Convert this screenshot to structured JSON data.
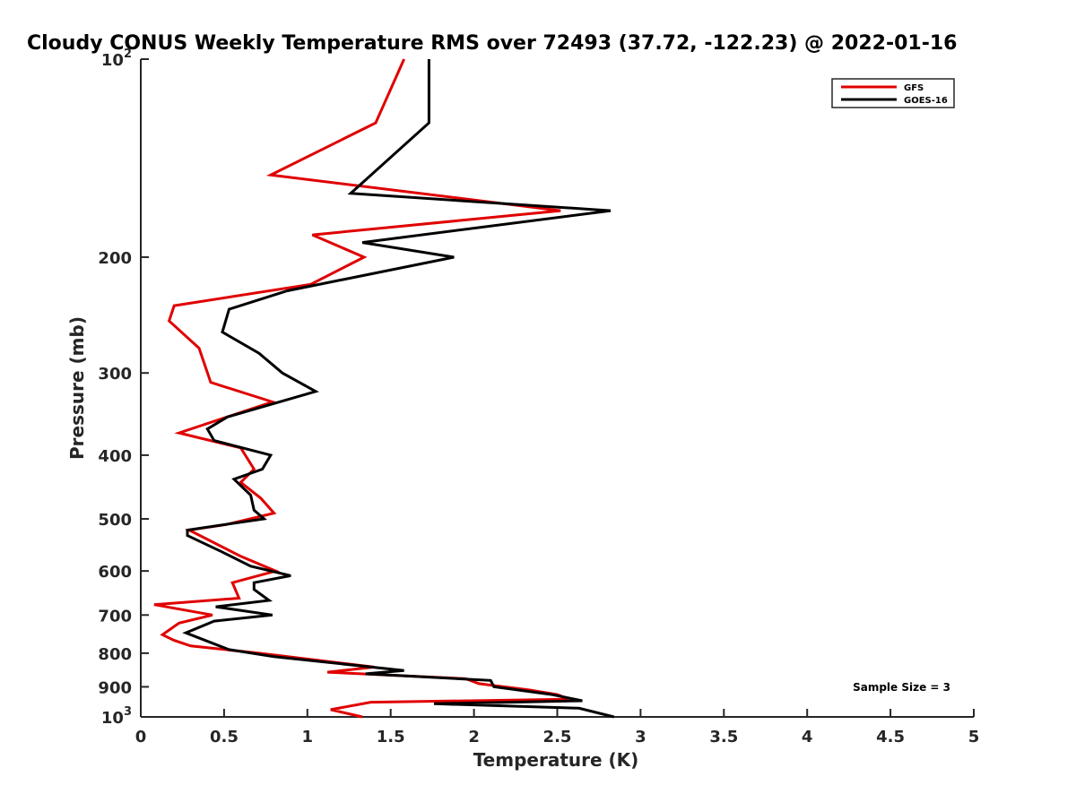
{
  "chart_data": {
    "type": "line",
    "title": "Cloudy CONUS Weekly Temperature RMS over 72493 (37.72, -122.23) @ 2022-01-16",
    "xlabel": "Temperature (K)",
    "ylabel": "Pressure (mb)",
    "xlim": [
      0,
      5
    ],
    "ylim": [
      100,
      1000
    ],
    "yscale": "log",
    "y_reversed": true,
    "grid": false,
    "legend_position": "top-right",
    "x_ticks": [
      "0",
      "0.5",
      "1",
      "1.5",
      "2",
      "2.5",
      "3",
      "3.5",
      "4",
      "4.5",
      "5"
    ],
    "y_ticks": [
      {
        "value": 100,
        "base": "10",
        "exp": "2"
      },
      {
        "value": 200,
        "label": "200"
      },
      {
        "value": 300,
        "label": "300"
      },
      {
        "value": 400,
        "label": "400"
      },
      {
        "value": 500,
        "label": "500"
      },
      {
        "value": 600,
        "label": "600"
      },
      {
        "value": 700,
        "label": "700"
      },
      {
        "value": 800,
        "label": "800"
      },
      {
        "value": 900,
        "label": "900"
      },
      {
        "value": 1000,
        "base": "10",
        "exp": "3"
      }
    ],
    "annotation": "Sample Size = 3",
    "series": [
      {
        "name": "GFS",
        "color": "#e00000",
        "points": [
          [
            1.58,
            100
          ],
          [
            1.41,
            125
          ],
          [
            0.78,
            150
          ],
          [
            2.52,
            170
          ],
          [
            1.03,
            185
          ],
          [
            1.34,
            200
          ],
          [
            1.02,
            220
          ],
          [
            0.2,
            237
          ],
          [
            0.17,
            250
          ],
          [
            0.35,
            275
          ],
          [
            0.42,
            310
          ],
          [
            0.79,
            332
          ],
          [
            0.23,
            370
          ],
          [
            0.6,
            390
          ],
          [
            0.68,
            420
          ],
          [
            0.6,
            440
          ],
          [
            0.72,
            465
          ],
          [
            0.8,
            490
          ],
          [
            0.51,
            510
          ],
          [
            0.29,
            520
          ],
          [
            0.6,
            570
          ],
          [
            0.81,
            600
          ],
          [
            0.55,
            625
          ],
          [
            0.59,
            660
          ],
          [
            0.08,
            675
          ],
          [
            0.43,
            700
          ],
          [
            0.23,
            720
          ],
          [
            0.13,
            750
          ],
          [
            0.2,
            765
          ],
          [
            0.3,
            780
          ],
          [
            0.71,
            800
          ],
          [
            1.4,
            840
          ],
          [
            1.12,
            855
          ],
          [
            1.95,
            875
          ],
          [
            2.03,
            890
          ],
          [
            2.33,
            910
          ],
          [
            2.5,
            925
          ],
          [
            2.57,
            940
          ],
          [
            1.38,
            950
          ],
          [
            1.14,
            975
          ],
          [
            1.33,
            1000
          ]
        ]
      },
      {
        "name": "GOES-16",
        "color": "#000000",
        "points": [
          [
            1.73,
            100
          ],
          [
            1.73,
            125
          ],
          [
            1.26,
            160
          ],
          [
            2.82,
            170
          ],
          [
            1.33,
            190
          ],
          [
            1.88,
            200
          ],
          [
            0.88,
            225
          ],
          [
            0.53,
            240
          ],
          [
            0.49,
            260
          ],
          [
            0.71,
            280
          ],
          [
            0.85,
            300
          ],
          [
            1.05,
            320
          ],
          [
            0.52,
            350
          ],
          [
            0.4,
            365
          ],
          [
            0.44,
            380
          ],
          [
            0.78,
            400
          ],
          [
            0.73,
            420
          ],
          [
            0.56,
            435
          ],
          [
            0.66,
            460
          ],
          [
            0.68,
            485
          ],
          [
            0.74,
            500
          ],
          [
            0.28,
            520
          ],
          [
            0.28,
            530
          ],
          [
            0.48,
            560
          ],
          [
            0.66,
            590
          ],
          [
            0.9,
            610
          ],
          [
            0.68,
            625
          ],
          [
            0.68,
            640
          ],
          [
            0.77,
            665
          ],
          [
            0.45,
            680
          ],
          [
            0.79,
            700
          ],
          [
            0.44,
            715
          ],
          [
            0.27,
            745
          ],
          [
            0.53,
            790
          ],
          [
            0.8,
            810
          ],
          [
            1.58,
            850
          ],
          [
            1.35,
            860
          ],
          [
            2.1,
            880
          ],
          [
            2.12,
            900
          ],
          [
            2.47,
            925
          ],
          [
            2.65,
            945
          ],
          [
            1.76,
            955
          ],
          [
            2.63,
            970
          ],
          [
            2.84,
            1000
          ]
        ]
      }
    ]
  }
}
